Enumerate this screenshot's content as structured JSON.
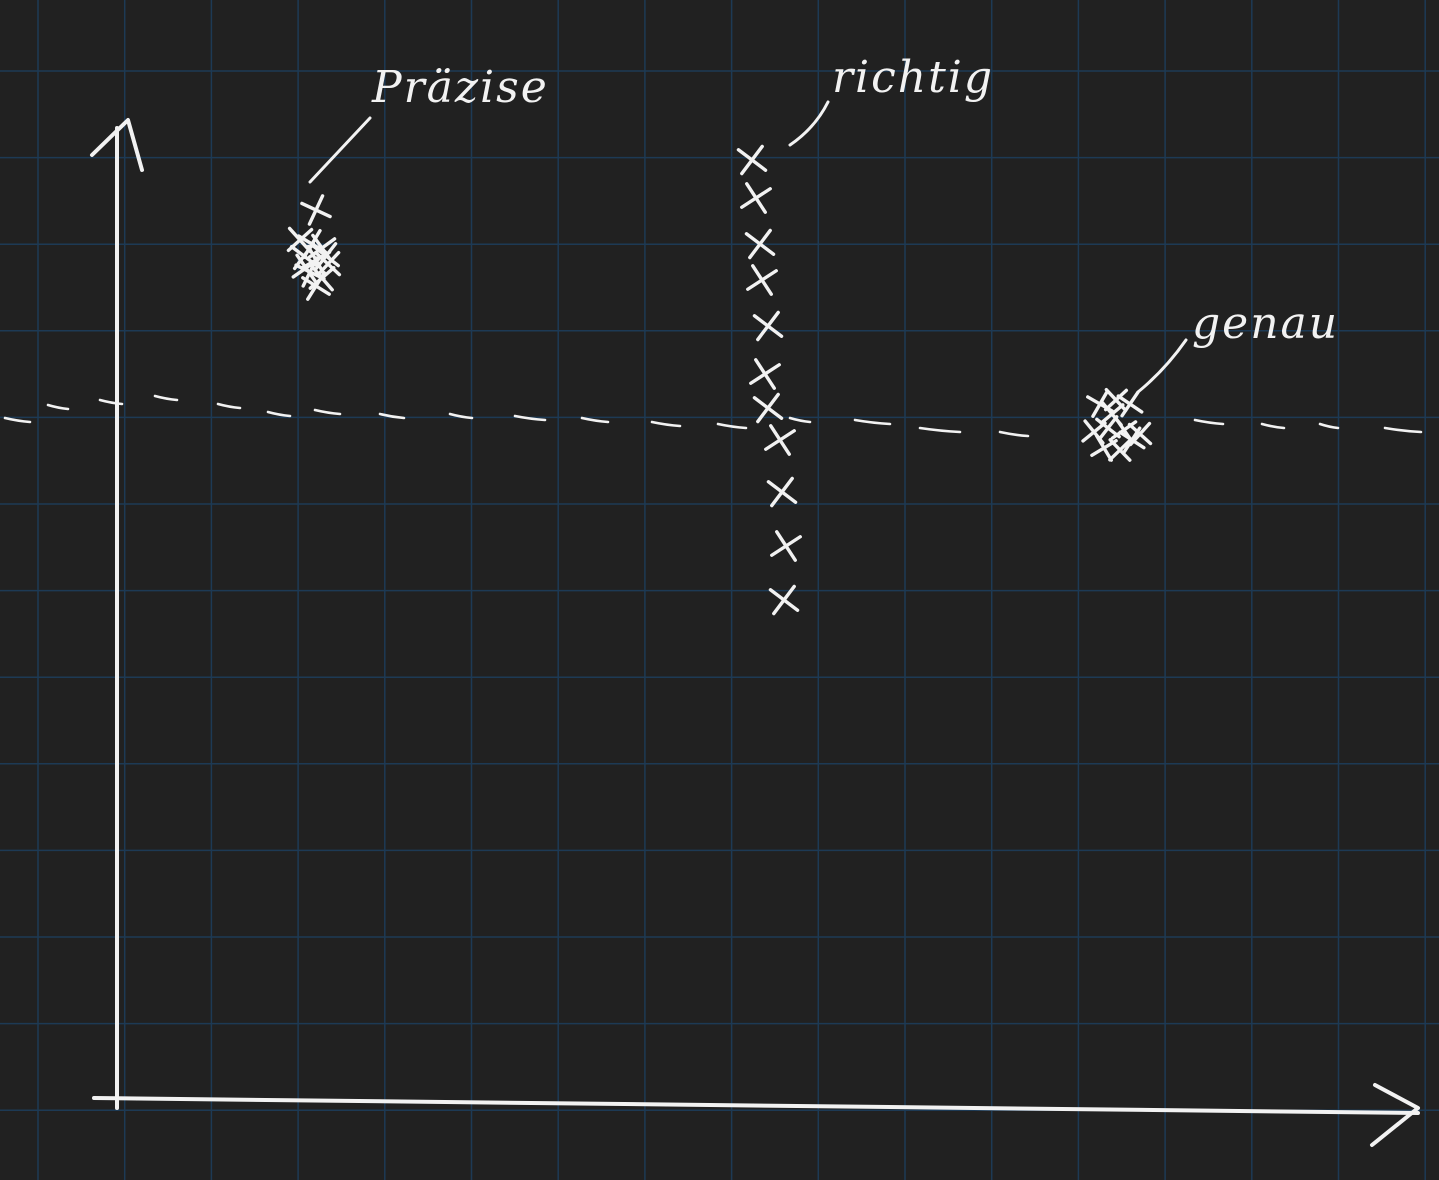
{
  "canvas": {
    "background": "#212121",
    "grid_color": "#1d3a55",
    "ink_color": "#f2f2f2"
  },
  "labels": {
    "praezise": "Präzise",
    "richtig": "richtig",
    "genau": "genau"
  },
  "elements": {
    "y_axis": "vertical axis with arrow",
    "x_axis": "horizontal axis with arrow",
    "reference_line": "dashed target line",
    "marker_shape": "x-marks"
  }
}
